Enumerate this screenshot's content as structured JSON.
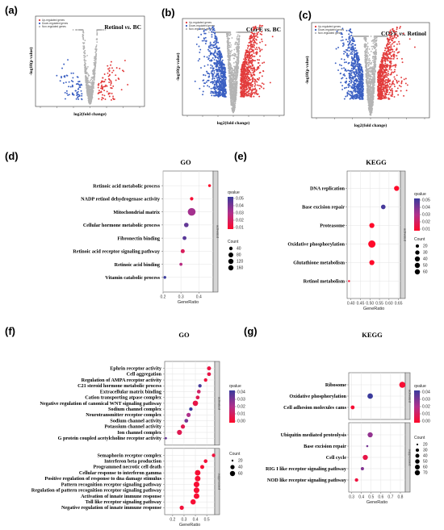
{
  "chart_data": [
    {
      "panel": "(a)",
      "type": "scatter",
      "title": "Retinol vs. BC",
      "xlabel": "log2(fold change)",
      "ylabel": "-log10(p value)",
      "legend": [
        "Up-regulated genes",
        "Down-regulated genes",
        "Non-regulated genes"
      ],
      "colors": {
        "up": "#e23b3b",
        "down": "#3a5fc2",
        "non": "#b4b4b4"
      },
      "spread": "narrow"
    },
    {
      "panel": "(b)",
      "type": "scatter",
      "title": "COFE vs. BC",
      "xlabel": "log2(fold change)",
      "ylabel": "-log10(p value)",
      "legend": [
        "Up-regulated genes",
        "Down-regulated genes",
        "Non-regulated genes"
      ],
      "colors": {
        "up": "#e23b3b",
        "down": "#3a5fc2",
        "non": "#b4b4b4"
      },
      "spread": "wide"
    },
    {
      "panel": "(c)",
      "type": "scatter",
      "title": "COFE vs. Retinol",
      "xlabel": "log2(fold change)",
      "ylabel": "-log10(p value)",
      "legend": [
        "Up-regulated genes",
        "Down-regulated genes",
        "Non-regulated genes"
      ],
      "colors": {
        "up": "#e23b3b",
        "down": "#3a5fc2",
        "non": "#b4b4b4"
      },
      "spread": "wide"
    },
    {
      "panel": "(d)",
      "type": "scatter",
      "title": "GO",
      "xlabel": "GeneRatio",
      "xlim": [
        0.2,
        0.48
      ],
      "xticks": [
        0.2,
        0.3,
        0.4
      ],
      "strips": [
        "activated"
      ],
      "qvalue_ticks": [
        "0.05",
        "0.04",
        "0.03",
        "0.02",
        "0.01"
      ],
      "count_ticks": [
        "40",
        "80",
        "120",
        "160"
      ],
      "terms": [
        {
          "name": "Retinoic acid metabolic process",
          "x": 0.46,
          "q": 0.004,
          "count": 22
        },
        {
          "name": "NADP retinol dehydrogenase activity",
          "x": 0.36,
          "q": 0.012,
          "count": 28
        },
        {
          "name": "Mitochondrial matrix",
          "x": 0.36,
          "q": 0.032,
          "count": 170
        },
        {
          "name": "Cellular hormone metabolic process",
          "x": 0.33,
          "q": 0.043,
          "count": 48
        },
        {
          "name": "Fibronectin binding",
          "x": 0.32,
          "q": 0.045,
          "count": 35
        },
        {
          "name": "Retinoic acid receptor signaling pathway",
          "x": 0.31,
          "q": 0.02,
          "count": 38
        },
        {
          "name": "Retinoic acid binding",
          "x": 0.3,
          "q": 0.028,
          "count": 24
        },
        {
          "name": "Vitamin catabolic process",
          "x": 0.21,
          "q": 0.05,
          "count": 22
        }
      ]
    },
    {
      "panel": "(e)",
      "type": "scatter",
      "title": "KEGG",
      "xlabel": "GeneRatio",
      "xlim": [
        0.38,
        0.66
      ],
      "xticks": [
        0.4,
        0.45,
        0.5,
        0.55,
        0.6,
        0.65
      ],
      "xtick_labels": [
        "0.40",
        "0.45",
        "0.50",
        "0.55",
        "0.60",
        "0.65"
      ],
      "strips": [
        "activated"
      ],
      "qvalue_ticks": [
        "0.05",
        "0.04",
        "0.03",
        "0.02",
        "0.01"
      ],
      "count_ticks": [
        "20",
        "30",
        "40",
        "50",
        "60"
      ],
      "terms": [
        {
          "name": "DNA replication",
          "x": 0.64,
          "q": 0.01,
          "count": 30
        },
        {
          "name": "Base excision repair",
          "x": 0.57,
          "q": 0.048,
          "count": 25
        },
        {
          "name": "Proteasome",
          "x": 0.51,
          "q": 0.01,
          "count": 30
        },
        {
          "name": "Oxidative phosphorylation",
          "x": 0.51,
          "q": 0.008,
          "count": 60
        },
        {
          "name": "Glutathione metabolism",
          "x": 0.51,
          "q": 0.008,
          "count": 30
        },
        {
          "name": "Retinol metabolism",
          "x": 0.39,
          "q": 0.01,
          "count": 14
        }
      ]
    },
    {
      "panel": "(f)",
      "type": "scatter",
      "title": "GO",
      "xlabel": "GeneRatio",
      "xlim": [
        0.13,
        0.57
      ],
      "xticks": [
        0.2,
        0.3,
        0.4,
        0.5
      ],
      "strips": [
        "activated",
        "suppressed"
      ],
      "qvalue_ticks": [
        "0.04",
        "0.03",
        "0.02",
        "0.01",
        "0.00"
      ],
      "count_ticks": [
        "20",
        "40",
        "60"
      ],
      "terms": [
        {
          "name": "Ephrin receptor activity",
          "x": 0.52,
          "q": 0.005,
          "count": 28,
          "group": 0
        },
        {
          "name": "Cell aggregation",
          "x": 0.52,
          "q": 0.006,
          "count": 26,
          "group": 0
        },
        {
          "name": "Regulation of AMPA receptor activity",
          "x": 0.49,
          "q": 0.004,
          "count": 24,
          "group": 0
        },
        {
          "name": "C21 steroid hormone metabolic process",
          "x": 0.44,
          "q": 0.038,
          "count": 24,
          "group": 0
        },
        {
          "name": "Extracellular matrix binding",
          "x": 0.43,
          "q": 0.012,
          "count": 26,
          "group": 0
        },
        {
          "name": "Cation transporting atpase complex",
          "x": 0.42,
          "q": 0.008,
          "count": 26,
          "group": 0
        },
        {
          "name": "Negative regulation of canonical WNT signaling pathway",
          "x": 0.4,
          "q": 0.006,
          "count": 46,
          "group": 0
        },
        {
          "name": "Sodium channel complex",
          "x": 0.36,
          "q": 0.04,
          "count": 24,
          "group": 0
        },
        {
          "name": "Neurotransmitter receptor complex",
          "x": 0.34,
          "q": 0.02,
          "count": 30,
          "group": 0
        },
        {
          "name": "Sodium channel activity",
          "x": 0.32,
          "q": 0.03,
          "count": 26,
          "group": 0
        },
        {
          "name": "Potassium channel activity",
          "x": 0.29,
          "q": 0.008,
          "count": 30,
          "group": 0
        },
        {
          "name": "Ion channel complex",
          "x": 0.26,
          "q": 0.008,
          "count": 40,
          "group": 0
        },
        {
          "name": "G protein coupled acetylcholine receptor activity",
          "x": 0.14,
          "q": 0.032,
          "count": 20,
          "group": 0
        },
        {
          "name": "Semaphorin receptor complex",
          "x": 0.56,
          "q": 0.004,
          "count": 24,
          "group": 1
        },
        {
          "name": "Interferon beta production",
          "x": 0.49,
          "q": 0.003,
          "count": 26,
          "group": 1
        },
        {
          "name": "Programmed necrotic cell death",
          "x": 0.46,
          "q": 0.002,
          "count": 28,
          "group": 1
        },
        {
          "name": "Cellular response to interferon gamma",
          "x": 0.42,
          "q": 0.002,
          "count": 50,
          "group": 1
        },
        {
          "name": "Positive regulation of response to dna damage stimulus",
          "x": 0.42,
          "q": 0.002,
          "count": 50,
          "group": 1
        },
        {
          "name": "Pattern recognition receptor signaling pathway",
          "x": 0.41,
          "q": 0.002,
          "count": 52,
          "group": 1
        },
        {
          "name": "Regulation of pattern recognition receptor signaling pathway",
          "x": 0.41,
          "q": 0.002,
          "count": 52,
          "group": 1
        },
        {
          "name": "Activation of innate immune response",
          "x": 0.41,
          "q": 0.002,
          "count": 50,
          "group": 1
        },
        {
          "name": "Toll like receptor signaling pathway",
          "x": 0.38,
          "q": 0.002,
          "count": 44,
          "group": 1
        },
        {
          "name": "Negative regulation of innate immune response",
          "x": 0.28,
          "q": 0.003,
          "count": 30,
          "group": 1
        }
      ]
    },
    {
      "panel": "(g)",
      "type": "scatter",
      "title": "KEGG",
      "xlabel": "GeneRatio",
      "xlim": [
        0.27,
        0.85
      ],
      "xticks": [
        0.3,
        0.4,
        0.5,
        0.6,
        0.7,
        0.8
      ],
      "xtick_labels": [
        "0.3",
        "0.4",
        "0.5",
        "0.6",
        "0.7",
        "0.8"
      ],
      "strips": [
        "activated",
        "suppressed"
      ],
      "qvalue_ticks": [
        "0.04",
        "0.03",
        "0.02",
        "0.01",
        "0.00"
      ],
      "count_ticks": [
        "20",
        "30",
        "40",
        "50",
        "60",
        "70"
      ],
      "terms": [
        {
          "name": "Ribosome",
          "x": 0.82,
          "q": 0.002,
          "count": 70,
          "group": 0
        },
        {
          "name": "Oxidative phosphorylation",
          "x": 0.49,
          "q": 0.04,
          "count": 55,
          "group": 0
        },
        {
          "name": "Cell adhesion molecules cams",
          "x": 0.31,
          "q": 0.002,
          "count": 30,
          "group": 0
        },
        {
          "name": "Ubiquitin mediated proteolysis",
          "x": 0.49,
          "q": 0.025,
          "count": 48,
          "group": 1
        },
        {
          "name": "Base excision repair",
          "x": 0.46,
          "q": 0.03,
          "count": 20,
          "group": 1
        },
        {
          "name": "Cell cycle",
          "x": 0.44,
          "q": 0.006,
          "count": 48,
          "group": 1
        },
        {
          "name": "RIG I like receptor signaling pathway",
          "x": 0.41,
          "q": 0.028,
          "count": 24,
          "group": 1
        },
        {
          "name": "NOD like receptor signaling pathway",
          "x": 0.35,
          "q": 0.004,
          "count": 26,
          "group": 1
        }
      ]
    }
  ],
  "legend_titles": {
    "qvalue": "qvalue",
    "count": "Count"
  }
}
